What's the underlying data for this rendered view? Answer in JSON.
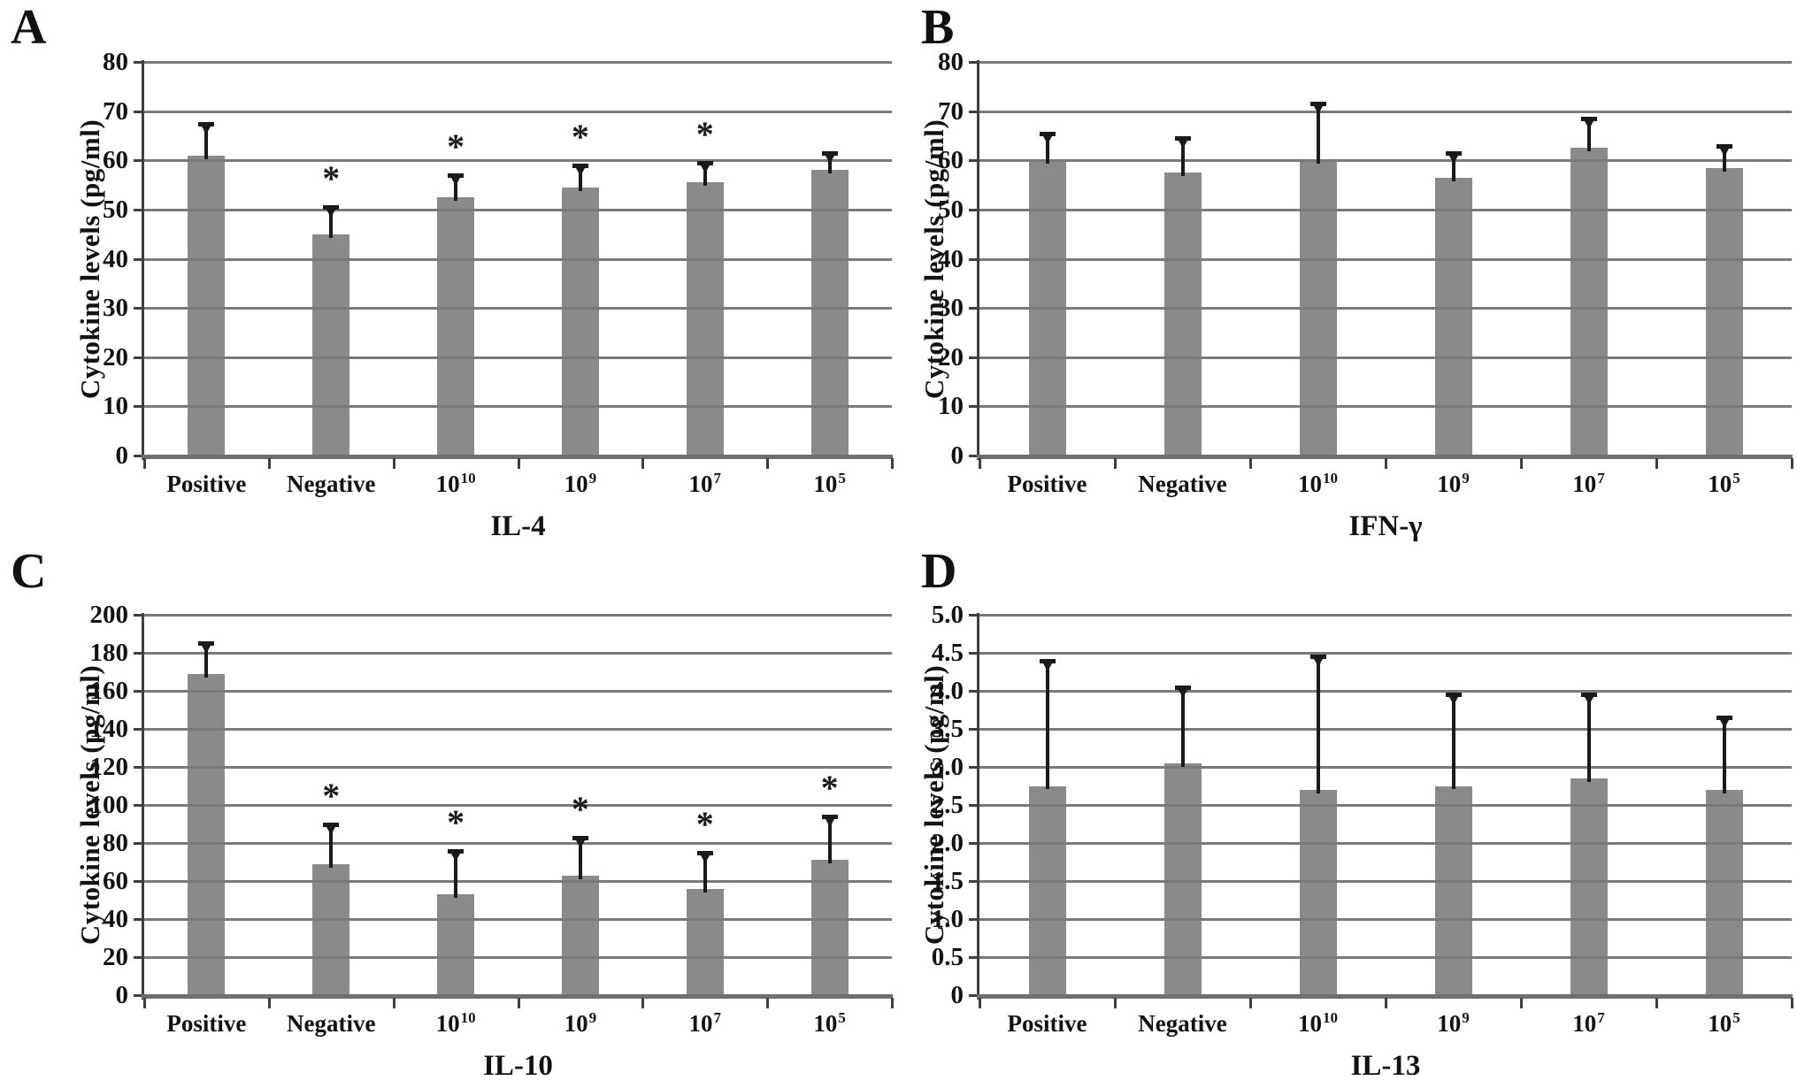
{
  "figure": {
    "background": "#ffffff",
    "bar_color": "#8a8a8a",
    "grid_color": "#7a7a7a",
    "axis_color": "#3f3f3f",
    "baseline_color": "#6f6f6f",
    "error_color": "#1a1a1a",
    "text_color": "#121212",
    "significance_marker": "*",
    "categories": [
      {
        "base": "Positive",
        "sup": ""
      },
      {
        "base": "Negative",
        "sup": ""
      },
      {
        "base": "10",
        "sup": "10"
      },
      {
        "base": "10",
        "sup": "9"
      },
      {
        "base": "10",
        "sup": "7"
      },
      {
        "base": "10",
        "sup": "5"
      }
    ]
  },
  "chart_data": [
    {
      "panel": "A",
      "type": "bar",
      "title": "IL-4",
      "ylabel": "Cytokine levels (pg/ml)",
      "ylim": [
        0,
        80
      ],
      "ytick_values": [
        0,
        10,
        20,
        30,
        40,
        50,
        60,
        70,
        80
      ],
      "ytick_labels": [
        "0",
        "10",
        "20",
        "30",
        "40",
        "50",
        "60",
        "70",
        "80"
      ],
      "values": [
        61,
        45,
        52.5,
        54.5,
        55.5,
        58
      ],
      "error_upper": [
        6.5,
        5.5,
        4.5,
        4.5,
        4,
        3.5
      ],
      "significant": [
        false,
        true,
        true,
        true,
        true,
        false
      ],
      "grid": true,
      "legend": "none"
    },
    {
      "panel": "B",
      "type": "bar",
      "title": "IFN-γ",
      "ylabel": "Cytokine levels (pg/ml)",
      "ylim": [
        0,
        80
      ],
      "ytick_values": [
        0,
        10,
        20,
        30,
        40,
        50,
        60,
        70,
        80
      ],
      "ytick_labels": [
        "0",
        "10",
        "20",
        "30",
        "40",
        "50",
        "60",
        "70",
        "80"
      ],
      "values": [
        60,
        57.5,
        60,
        56.5,
        62.5,
        58.5
      ],
      "error_upper": [
        5.5,
        7,
        11.5,
        5,
        6,
        4.5
      ],
      "significant": [
        false,
        false,
        false,
        false,
        false,
        false
      ],
      "grid": true,
      "legend": "none"
    },
    {
      "panel": "C",
      "type": "bar",
      "title": "IL-10",
      "ylabel": "Cytokine levels (pg/ml)",
      "ylim": [
        0,
        200
      ],
      "ytick_values": [
        0,
        20,
        40,
        60,
        80,
        100,
        120,
        140,
        160,
        180,
        200
      ],
      "ytick_labels": [
        "0",
        "20",
        "40",
        "60",
        "80",
        "100",
        "120",
        "140",
        "160",
        "180",
        "200"
      ],
      "values": [
        169,
        69,
        53,
        63,
        56,
        71
      ],
      "error_upper": [
        16,
        21,
        23,
        20,
        19,
        23
      ],
      "significant": [
        false,
        true,
        true,
        true,
        true,
        true
      ],
      "grid": true,
      "legend": "none"
    },
    {
      "panel": "D",
      "type": "bar",
      "title": "IL-13",
      "ylabel": "Cytokine levels (pg/ml)",
      "ylim": [
        0,
        5
      ],
      "ytick_values": [
        0,
        0.5,
        1,
        1.5,
        2,
        2.5,
        3,
        3.5,
        4,
        4.5,
        5
      ],
      "ytick_labels": [
        "0",
        "0.5",
        "1.0",
        "1.5",
        "2.0",
        "2.5",
        "3.0",
        "3.5",
        "4.0",
        "4.5",
        "5.0"
      ],
      "values": [
        2.75,
        3.05,
        2.7,
        2.75,
        2.85,
        2.7
      ],
      "error_upper": [
        1.65,
        1.0,
        1.75,
        1.2,
        1.1,
        0.95
      ],
      "significant": [
        false,
        false,
        false,
        false,
        false,
        false
      ],
      "grid": true,
      "legend": "none"
    }
  ]
}
